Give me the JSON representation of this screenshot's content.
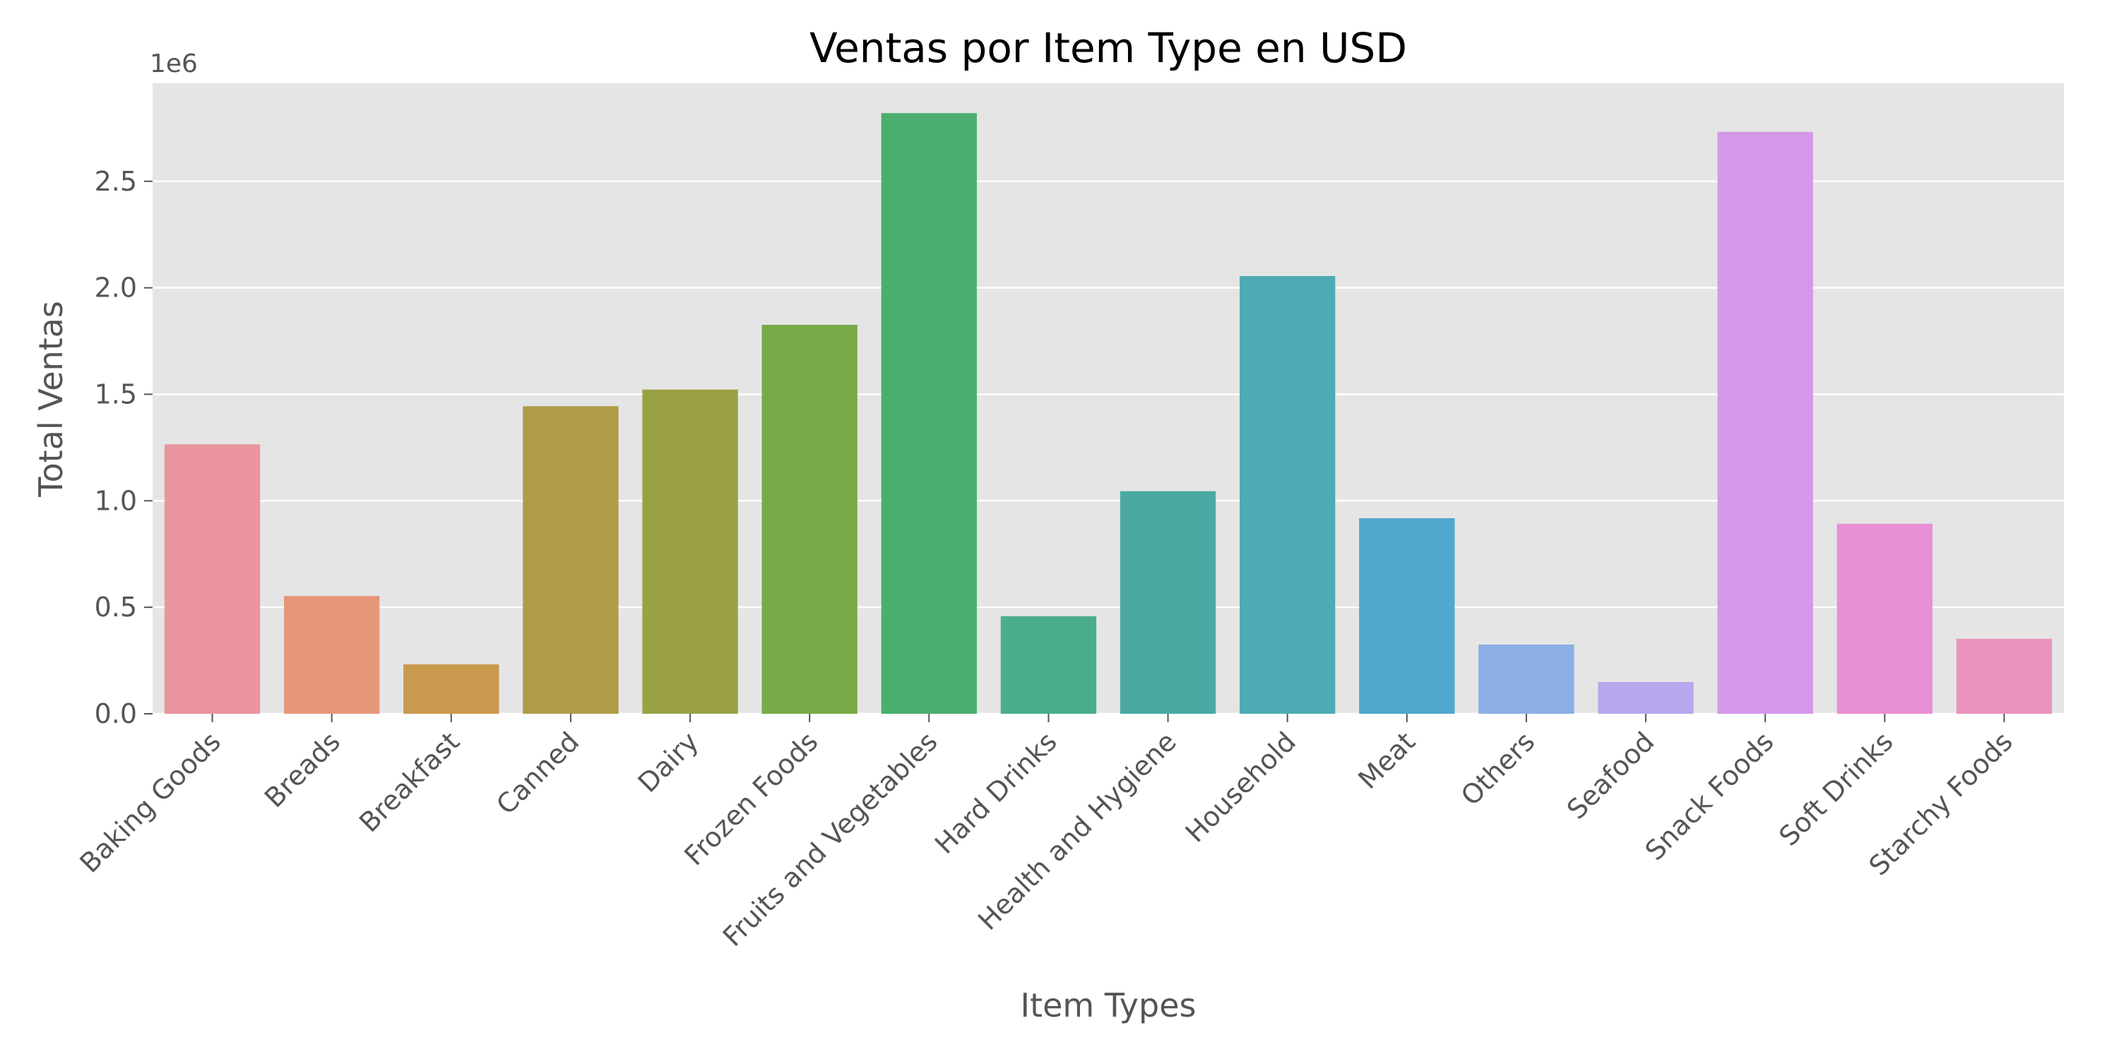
{
  "chart_data": {
    "type": "bar",
    "title": "Ventas por Item Type en USD",
    "xlabel": "Item Types",
    "ylabel": "Total Ventas",
    "y_offset_label": "1e6",
    "ylim": [
      0,
      2.96
    ],
    "yticks": [
      0.0,
      0.5,
      1.0,
      1.5,
      2.0,
      2.5
    ],
    "ytick_labels": [
      "0.0",
      "0.5",
      "1.0",
      "1.5",
      "2.0",
      "2.5"
    ],
    "grid": true,
    "categories": [
      "Baking Goods",
      "Breads",
      "Breakfast",
      "Canned",
      "Dairy",
      "Frozen Foods",
      "Fruits and Vegetables",
      "Hard Drinks",
      "Health and Hygiene",
      "Household",
      "Meat",
      "Others",
      "Seafood",
      "Snack Foods",
      "Soft Drinks",
      "Starchy Foods"
    ],
    "values": [
      1.265,
      0.553,
      0.232,
      1.444,
      1.522,
      1.826,
      2.82,
      0.458,
      1.045,
      2.055,
      0.918,
      0.325,
      0.149,
      2.732,
      0.892,
      0.352
    ],
    "colors": [
      "#e9949e",
      "#e6977a",
      "#c99a4e",
      "#ae9c48",
      "#9aa144",
      "#79aa48",
      "#4aae6f",
      "#4aae8c",
      "#4aaaa3",
      "#4eaab5",
      "#50a8cf",
      "#8aaee5",
      "#b6a7ef",
      "#d498e8",
      "#e88fd5",
      "#ea92bc"
    ]
  }
}
